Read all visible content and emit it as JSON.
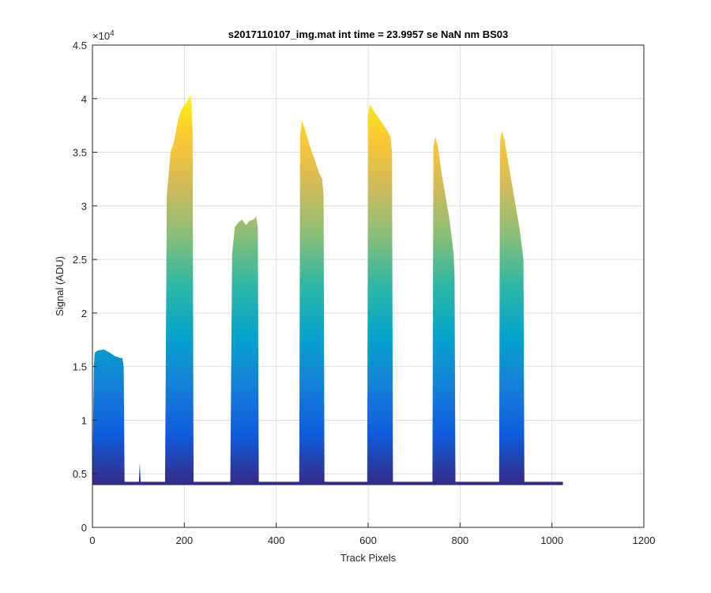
{
  "chart_data": {
    "type": "area",
    "title": "s2017110107_img.mat int time = 23.9957 se  NaN nm BS03",
    "xlabel": "Track Pixels",
    "ylabel": "Signal (ADU)",
    "y_exponent_label": "×10",
    "y_exponent_power": "4",
    "xlim": [
      0,
      1200
    ],
    "ylim": [
      0,
      45000
    ],
    "xticks": [
      0,
      200,
      400,
      600,
      800,
      1000,
      1200
    ],
    "yticks": [
      0,
      5000,
      10000,
      15000,
      20000,
      25000,
      30000,
      35000,
      40000,
      45000
    ],
    "ytick_labels": [
      "0",
      "0.5",
      "1",
      "1.5",
      "2",
      "2.5",
      "3",
      "3.5",
      "4",
      "4.5"
    ],
    "grid": true,
    "baseline": 4100,
    "x_extent": [
      0,
      1024
    ],
    "colormap": [
      "#352a87",
      "#0f5cdd",
      "#1481d6",
      "#06a4ca",
      "#2eb7a4",
      "#87bf77",
      "#d1bb59",
      "#fec832",
      "#f9fb0e"
    ],
    "series": [
      {
        "x": [
          0,
          3,
          5,
          12,
          25,
          38,
          48,
          55,
          60,
          65,
          68,
          70
        ],
        "y": [
          4100,
          15000,
          16300,
          16500,
          16600,
          16300,
          16000,
          15900,
          15800,
          15800,
          15000,
          4100
        ]
      },
      {
        "x": [
          101,
          103,
          105
        ],
        "y": [
          4100,
          6000,
          4100
        ]
      },
      {
        "x": [
          158,
          162,
          170,
          178,
          186,
          194,
          202,
          210,
          214,
          216,
          218,
          220
        ],
        "y": [
          4100,
          31000,
          35000,
          36000,
          38000,
          39000,
          39500,
          40000,
          40400,
          39000,
          37000,
          4100
        ]
      },
      {
        "x": [
          300,
          304,
          310,
          318,
          326,
          334,
          342,
          350,
          356,
          360,
          362
        ],
        "y": [
          4100,
          25500,
          28000,
          28500,
          28700,
          28200,
          28600,
          28700,
          29000,
          28000,
          4100
        ]
      },
      {
        "x": [
          450,
          452,
          456,
          462,
          470,
          478,
          486,
          494,
          500,
          503,
          505
        ],
        "y": [
          4100,
          36500,
          38000,
          37200,
          36000,
          35000,
          34000,
          33000,
          32500,
          31000,
          4100
        ]
      },
      {
        "x": [
          598,
          600,
          604,
          610,
          618,
          626,
          634,
          642,
          648,
          652,
          654
        ],
        "y": [
          4100,
          38500,
          39500,
          39000,
          38500,
          38000,
          37500,
          37000,
          36500,
          35000,
          4100
        ]
      },
      {
        "x": [
          740,
          742,
          746,
          752,
          760,
          768,
          776,
          782,
          786,
          788,
          790
        ],
        "y": [
          4100,
          35500,
          36500,
          35500,
          33000,
          31000,
          29000,
          27000,
          25500,
          23500,
          4100
        ]
      },
      {
        "x": [
          885,
          887,
          891,
          897,
          905,
          913,
          921,
          929,
          935,
          938,
          940
        ],
        "y": [
          4100,
          36000,
          37000,
          36000,
          34000,
          32000,
          30000,
          28000,
          26000,
          25000,
          4100
        ]
      }
    ]
  }
}
